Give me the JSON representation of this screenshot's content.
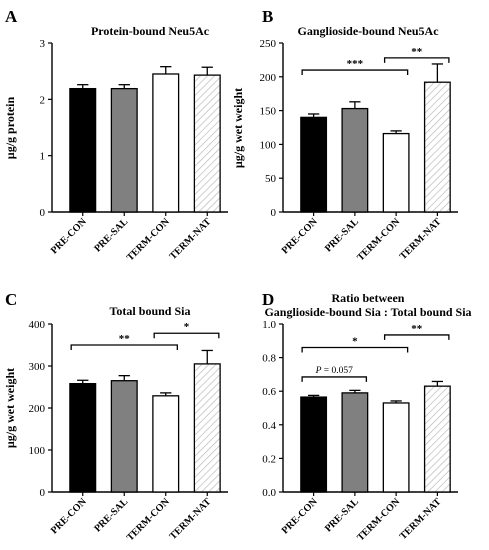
{
  "chart_data": [
    {
      "panel": "A",
      "type": "bar",
      "title": "Protein-bound Neu5Ac",
      "ylabel": "µg/g protein",
      "categories": [
        "PRE-CON",
        "PRE-SAL",
        "TERM-CON",
        "TERM-NAT"
      ],
      "values": [
        2.19,
        2.19,
        2.45,
        2.43
      ],
      "errors": [
        0.07,
        0.07,
        0.13,
        0.14
      ],
      "ylim": [
        0,
        3
      ],
      "yticks": [
        "0",
        "1",
        "2",
        "3"
      ],
      "fills": [
        "solid-black",
        "solid-gray",
        "white",
        "hatched"
      ],
      "significance": []
    },
    {
      "panel": "B",
      "type": "bar",
      "title": "Ganglioside-bound Neu5Ac",
      "ylabel": "µg/g wet weight",
      "categories": [
        "PRE-CON",
        "PRE-SAL",
        "TERM-CON",
        "TERM-NAT"
      ],
      "values": [
        140,
        153,
        116,
        192
      ],
      "errors": [
        5,
        10,
        4,
        27
      ],
      "ylim": [
        0,
        250
      ],
      "yticks": [
        "0",
        "50",
        "100",
        "150",
        "200",
        "250"
      ],
      "fills": [
        "solid-black",
        "solid-gray",
        "white",
        "hatched"
      ],
      "significance": [
        {
          "from": 0,
          "to": 2,
          "y": 210,
          "label": "***"
        },
        {
          "from": 2,
          "to": 3,
          "y": 228,
          "label": "**"
        }
      ]
    },
    {
      "panel": "C",
      "type": "bar",
      "title": "Total bound Sia",
      "ylabel": "µg/g wet weight",
      "categories": [
        "PRE-CON",
        "PRE-SAL",
        "TERM-CON",
        "TERM-NAT"
      ],
      "values": [
        258,
        265,
        229,
        305
      ],
      "errors": [
        8,
        12,
        7,
        32
      ],
      "ylim": [
        0,
        400
      ],
      "yticks": [
        "0",
        "100",
        "200",
        "300",
        "400"
      ],
      "fills": [
        "solid-black",
        "solid-gray",
        "white",
        "hatched"
      ],
      "significance": [
        {
          "from": 0,
          "to": 2,
          "y": 350,
          "label": "**"
        },
        {
          "from": 2,
          "to": 3,
          "y": 378,
          "label": "*"
        }
      ]
    },
    {
      "panel": "D",
      "type": "bar",
      "title": "Ratio between",
      "subtitle": "Ganglioside-bound Sia : Total bound Sia",
      "ylabel": "",
      "categories": [
        "PRE-CON",
        "PRE-SAL",
        "TERM-CON",
        "TERM-NAT"
      ],
      "values": [
        0.565,
        0.59,
        0.53,
        0.63
      ],
      "errors": [
        0.01,
        0.015,
        0.012,
        0.028
      ],
      "ylim": [
        0,
        1.0
      ],
      "yticks": [
        "0.0",
        "0.2",
        "0.4",
        "0.6",
        "0.8",
        "1.0"
      ],
      "fills": [
        "solid-black",
        "solid-gray",
        "white",
        "hatched"
      ],
      "significance": [
        {
          "from": 0,
          "to": 1,
          "y": 0.685,
          "label": "P = 0.057",
          "italic_prefix": "P"
        },
        {
          "from": 0,
          "to": 2,
          "y": 0.86,
          "label": "*"
        },
        {
          "from": 2,
          "to": 3,
          "y": 0.935,
          "label": "**"
        }
      ]
    }
  ],
  "colors": {
    "solid-black": "#000000",
    "solid-gray": "#808080",
    "white": "#ffffff",
    "hatched-line": "#b5b5b5",
    "axis": "#000000"
  }
}
